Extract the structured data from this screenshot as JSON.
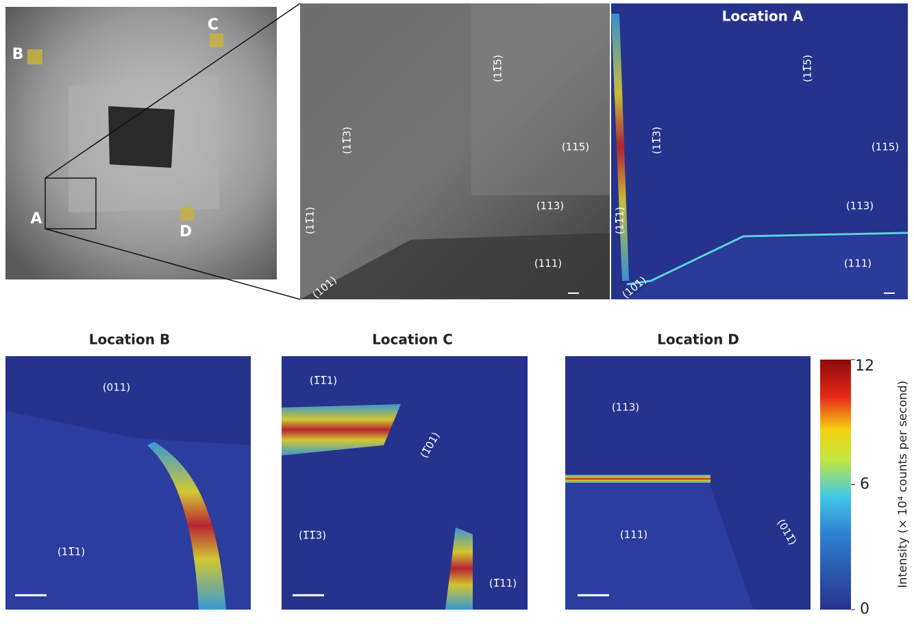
{
  "overview": {
    "markers": [
      "A",
      "B",
      "C",
      "D"
    ]
  },
  "zoom": {
    "labels": [
      "(11̅5)",
      "(11̅3)",
      "(115)",
      "(113)",
      "(11̅1)",
      "(111)",
      "(101)"
    ]
  },
  "location_a": {
    "title": "Location A",
    "labels": [
      "(11̅5)",
      "(11̅3)",
      "(115)",
      "(113)",
      "(11̅1)",
      "(111)",
      "(101)"
    ]
  },
  "location_b": {
    "title": "Location B",
    "labels": [
      "(011)",
      "(11̅1)"
    ]
  },
  "location_c": {
    "title": "Location C",
    "labels": [
      "(1̅1̅1)",
      "(1̅01)",
      "(1̅1̅3)",
      "(1̅11)"
    ]
  },
  "location_d": {
    "title": "Location D",
    "labels": [
      "(113)",
      "(111)",
      "(011̅)"
    ]
  },
  "colorbar": {
    "ticks": [
      0,
      6,
      12
    ],
    "label": "Intensity (× 10⁴ counts per second)"
  }
}
